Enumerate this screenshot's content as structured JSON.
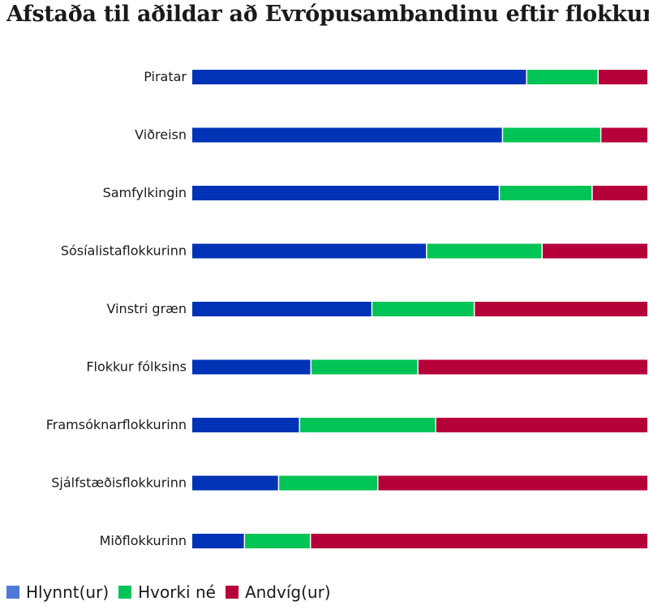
{
  "chart_data": {
    "type": "bar",
    "orientation": "horizontal",
    "stacked": true,
    "percent": true,
    "title": "Afstaða til aðildar að Evrópusambandinu eftir flokkum",
    "categories": [
      "Piratar",
      "Viðreisn",
      "Samfylkingin",
      "Sósíalistaflokkurinn",
      "Vinstri græn",
      "Flokkur fólksins",
      "Framsóknarflokkurinn",
      "Sjálfstæðisflokkurinn",
      "Miðflokkurinn"
    ],
    "series": [
      {
        "name": "Hlynnt(ur)",
        "color": "#0033b5",
        "values": [
          73.6,
          68.3,
          67.6,
          51.6,
          39.6,
          26.2,
          23.7,
          19.1,
          11.6
        ]
      },
      {
        "name": "Hvorki né",
        "color": "#00c455",
        "values": [
          15.7,
          21.6,
          20.4,
          25.4,
          22.5,
          23.5,
          29.9,
          21.8,
          14.5
        ]
      },
      {
        "name": "Andvíg(ur)",
        "color": "#b5003a",
        "values": [
          10.7,
          10.1,
          12.0,
          23.0,
          37.9,
          50.3,
          46.4,
          59.1,
          73.9
        ]
      }
    ],
    "legend": {
      "position": "bottom-left",
      "swatch_colors": [
        "#4f79d9",
        "#00c455",
        "#b5003a"
      ]
    },
    "xlim": [
      0,
      100
    ],
    "grid": false
  }
}
